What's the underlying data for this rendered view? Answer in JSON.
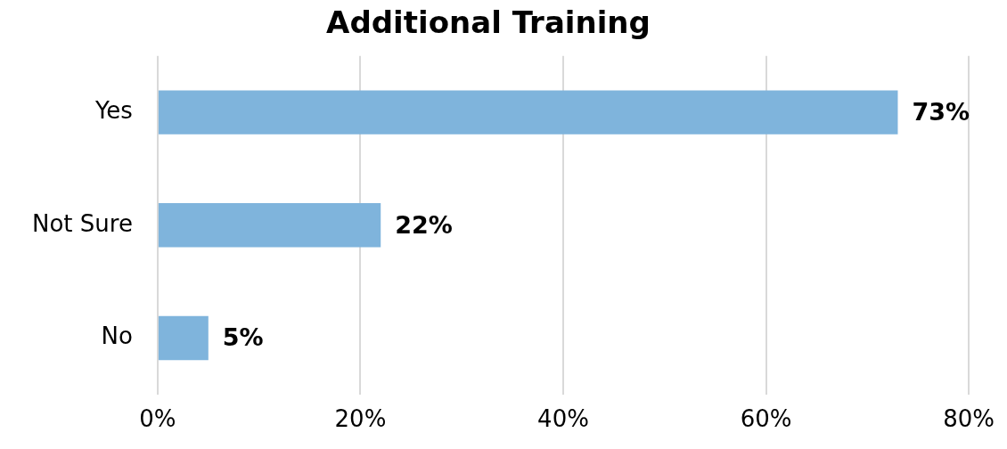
{
  "chart_data": {
    "type": "bar",
    "orientation": "horizontal",
    "title": "Additional Training",
    "categories": [
      "Yes",
      "Not Sure",
      "No"
    ],
    "values": [
      73,
      22,
      5
    ],
    "color": "#7fb4dc",
    "value_labels": [
      "73%",
      "22%",
      "5%"
    ],
    "xlim": [
      0,
      80
    ],
    "xticks": [
      {
        "value": 0,
        "label": "0%"
      },
      {
        "value": 20,
        "label": "20%"
      },
      {
        "value": 40,
        "label": "40%"
      },
      {
        "value": 60,
        "label": "60%"
      },
      {
        "value": 80,
        "label": "80%"
      }
    ],
    "grid": "x",
    "legend": false
  }
}
